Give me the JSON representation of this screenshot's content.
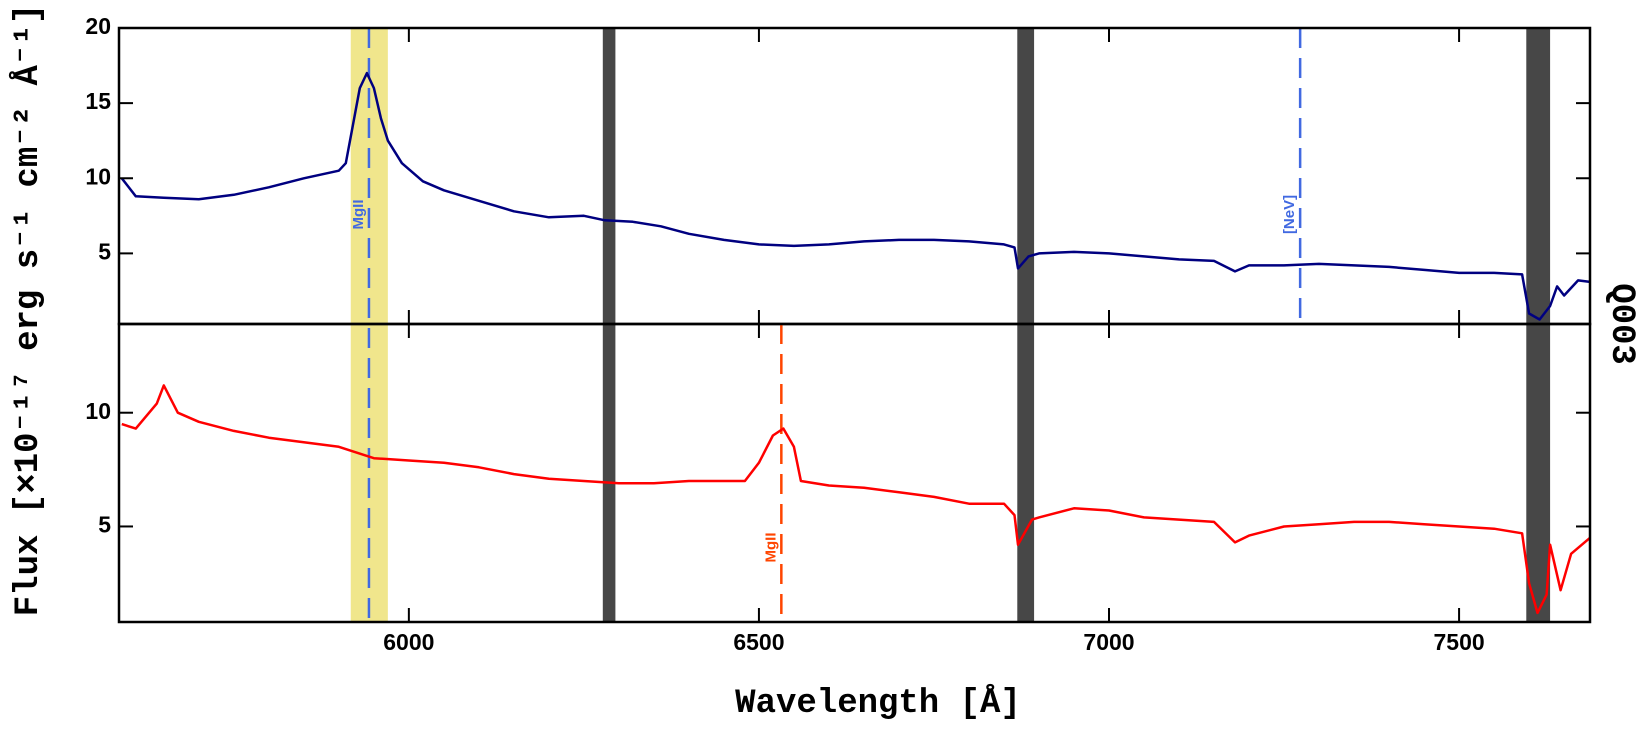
{
  "chart_data": [
    {
      "type": "line",
      "ylabel": "Flux [×10⁻¹⁷ erg s⁻¹ cm⁻² Å⁻¹]",
      "side_label": "Q003",
      "xlim": [
        5586,
        7687
      ],
      "ylim": [
        0.3,
        20
      ],
      "yticks": [
        5,
        10,
        15,
        20
      ],
      "bands": [
        {
          "x": [
            5917,
            5970
          ],
          "color": "#f0e68c"
        },
        {
          "x": [
            6277,
            6295
          ],
          "color": "#474747"
        },
        {
          "x": [
            6869,
            6893
          ],
          "color": "#474747"
        },
        {
          "x": [
            7596,
            7630
          ],
          "color": "#474747"
        }
      ],
      "lines": [
        {
          "x": 5943,
          "label": "MgII",
          "color": "#4169e1",
          "full_height": true
        },
        {
          "x": 7273,
          "label": "[NeV]",
          "color": "#4169e1",
          "full_height": false
        }
      ],
      "series": [
        {
          "color": "#000080",
          "x": [
            5590,
            5610,
            5650,
            5700,
            5750,
            5800,
            5850,
            5900,
            5910,
            5920,
            5930,
            5940,
            5950,
            5960,
            5970,
            5990,
            6020,
            6050,
            6100,
            6150,
            6200,
            6250,
            6280,
            6320,
            6360,
            6400,
            6450,
            6500,
            6550,
            6600,
            6650,
            6700,
            6750,
            6800,
            6850,
            6865,
            6870,
            6885,
            6900,
            6950,
            7000,
            7050,
            7100,
            7150,
            7180,
            7200,
            7250,
            7300,
            7350,
            7400,
            7450,
            7500,
            7550,
            7590,
            7600,
            7615,
            7630,
            7640,
            7650,
            7670,
            7687
          ],
          "values": [
            10,
            8.8,
            8.7,
            8.6,
            8.9,
            9.4,
            10.0,
            10.5,
            11,
            13.5,
            16,
            17,
            16,
            14,
            12.5,
            11.0,
            9.8,
            9.2,
            8.5,
            7.8,
            7.4,
            7.5,
            7.2,
            7.1,
            6.8,
            6.3,
            5.9,
            5.6,
            5.5,
            5.6,
            5.8,
            5.9,
            5.9,
            5.8,
            5.6,
            5.4,
            4.0,
            4.8,
            5.0,
            5.1,
            5.0,
            4.8,
            4.6,
            4.5,
            3.8,
            4.2,
            4.2,
            4.3,
            4.2,
            4.1,
            3.9,
            3.7,
            3.7,
            3.6,
            1.0,
            0.6,
            1.5,
            2.8,
            2.2,
            3.2,
            3.1
          ]
        }
      ]
    },
    {
      "type": "line",
      "xlabel": "Wavelength [Å]",
      "xlim": [
        5586,
        7687
      ],
      "xticks": [
        6000,
        6500,
        7000,
        7500
      ],
      "ylim": [
        0.8,
        13.9
      ],
      "yticks": [
        5,
        10
      ],
      "lines": [
        {
          "x": 6532,
          "label": "MgII",
          "color": "#ff4500",
          "full_height": false
        }
      ],
      "series": [
        {
          "color": "#ff0000",
          "x": [
            5590,
            5610,
            5640,
            5650,
            5670,
            5700,
            5750,
            5800,
            5850,
            5900,
            5950,
            6000,
            6050,
            6100,
            6150,
            6200,
            6250,
            6300,
            6350,
            6400,
            6450,
            6480,
            6500,
            6520,
            6535,
            6550,
            6560,
            6600,
            6650,
            6700,
            6750,
            6800,
            6850,
            6865,
            6870,
            6890,
            6900,
            6950,
            7000,
            7050,
            7100,
            7150,
            7180,
            7200,
            7250,
            7300,
            7350,
            7400,
            7450,
            7500,
            7550,
            7590,
            7600,
            7612,
            7625,
            7630,
            7645,
            7660,
            7687
          ],
          "values": [
            9.5,
            9.3,
            10.4,
            11.2,
            10.0,
            9.6,
            9.2,
            8.9,
            8.7,
            8.5,
            8.0,
            7.9,
            7.8,
            7.6,
            7.3,
            7.1,
            7.0,
            6.9,
            6.9,
            7.0,
            7.0,
            7.0,
            7.8,
            9.0,
            9.3,
            8.5,
            7.0,
            6.8,
            6.7,
            6.5,
            6.3,
            6.0,
            6.0,
            5.5,
            4.2,
            5.3,
            5.4,
            5.8,
            5.7,
            5.4,
            5.3,
            5.2,
            4.3,
            4.6,
            5.0,
            5.1,
            5.2,
            5.2,
            5.1,
            5.0,
            4.9,
            4.7,
            2.5,
            1.2,
            2.0,
            4.2,
            2.2,
            3.8,
            4.5
          ]
        }
      ]
    }
  ]
}
